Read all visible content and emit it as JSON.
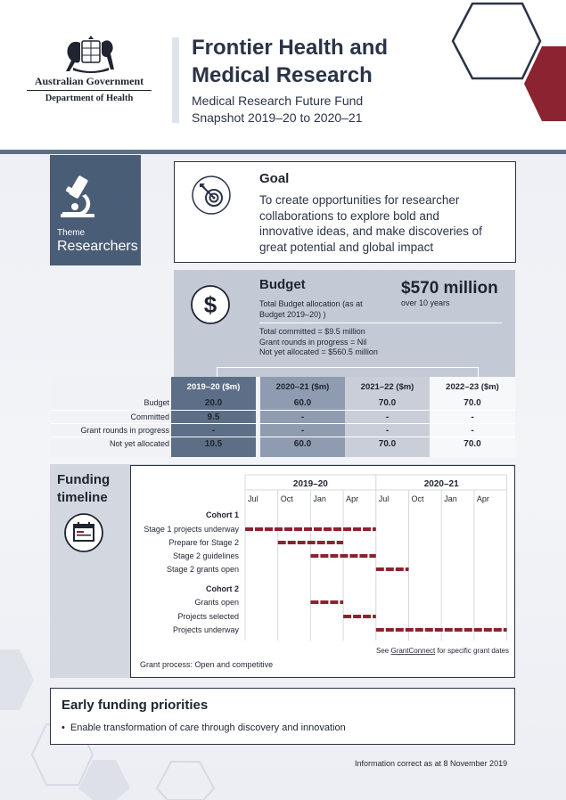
{
  "header": {
    "gov_line1": "Australian Government",
    "gov_line2": "Department of Health",
    "title_line1": "Frontier Health and",
    "title_line2": "Medical Research",
    "subtitle_line1": "Medical Research Future Fund",
    "subtitle_line2": "Snapshot 2019–20 to 2020–21"
  },
  "theme": {
    "label": "Theme",
    "value": "Researchers",
    "icon": "microscope-icon"
  },
  "goal": {
    "title": "Goal",
    "text": "To create opportunities for researcher collaborations to explore bold and innovative ideas, and make discoveries of great potential and global impact",
    "icon": "target-icon"
  },
  "budget": {
    "title": "Budget",
    "subtitle": "Total Budget allocation (as at Budget 2019–20) )",
    "amount": "$570 million",
    "period": "over 10 years",
    "line1": "Total committed = $9.5 million",
    "line2": "Grant rounds in progress = Nil",
    "line3": "Not yet allocated = $560.5 million",
    "icon": "dollar-icon"
  },
  "budget_table": {
    "columns": [
      "2019–20 ($m)",
      "2020–21 ($m)",
      "2021–22 ($m)",
      "2022–23 ($m)"
    ],
    "column_colors": [
      "#5c6f86",
      "#8f9bb0",
      "#c9ced8",
      "#f7f8fa"
    ],
    "rows": [
      {
        "label": "Budget",
        "values": [
          "20.0",
          "60.0",
          "70.0",
          "70.0"
        ]
      },
      {
        "label": "Committed",
        "values": [
          "9.5",
          "-",
          "-",
          "-"
        ]
      },
      {
        "label": "Grant rounds in progress",
        "values": [
          "-",
          "-",
          "-",
          "-"
        ]
      },
      {
        "label": "Not yet allocated",
        "values": [
          "10.5",
          "60.0",
          "70.0",
          "70.0"
        ]
      }
    ]
  },
  "timeline": {
    "title_line1": "Funding",
    "title_line2": "timeline",
    "icon": "calendar-icon",
    "years": [
      "2019–20",
      "2020–21"
    ],
    "months": [
      "Jul",
      "Oct",
      "Jan",
      "Apr",
      "Jul",
      "Oct",
      "Jan",
      "Apr"
    ],
    "cohort1_label": "Cohort 1",
    "cohort2_label": "Cohort  2",
    "bar_color": "#8b2330",
    "tasks": [
      {
        "label": "Stage 1 projects underway",
        "start": 0,
        "end": 4
      },
      {
        "label": "Prepare for Stage 2",
        "start": 1,
        "end": 3
      },
      {
        "label": "Stage 2 guidelines",
        "start": 2,
        "end": 4
      },
      {
        "label": "Stage 2 grants open",
        "start": 4,
        "end": 5
      },
      {
        "label": "Grants open",
        "start": 2,
        "end": 3
      },
      {
        "label": "Projects selected",
        "start": 3,
        "end": 4
      },
      {
        "label": "Projects underway",
        "start": 4,
        "end": 8
      }
    ],
    "note_prefix": "See ",
    "note_link": "GrantConnect",
    "note_suffix": " for specific grant dates",
    "process": "Grant process: Open and competitive"
  },
  "early_funding": {
    "title": "Early funding priorities",
    "items": [
      "Enable transformation of care through discovery and innovation"
    ]
  },
  "footer_note": "Information correct as at 8 November 2019",
  "colors": {
    "navy": "#2a3347",
    "slate": "#4a5d76",
    "maroon": "#8b2330"
  }
}
